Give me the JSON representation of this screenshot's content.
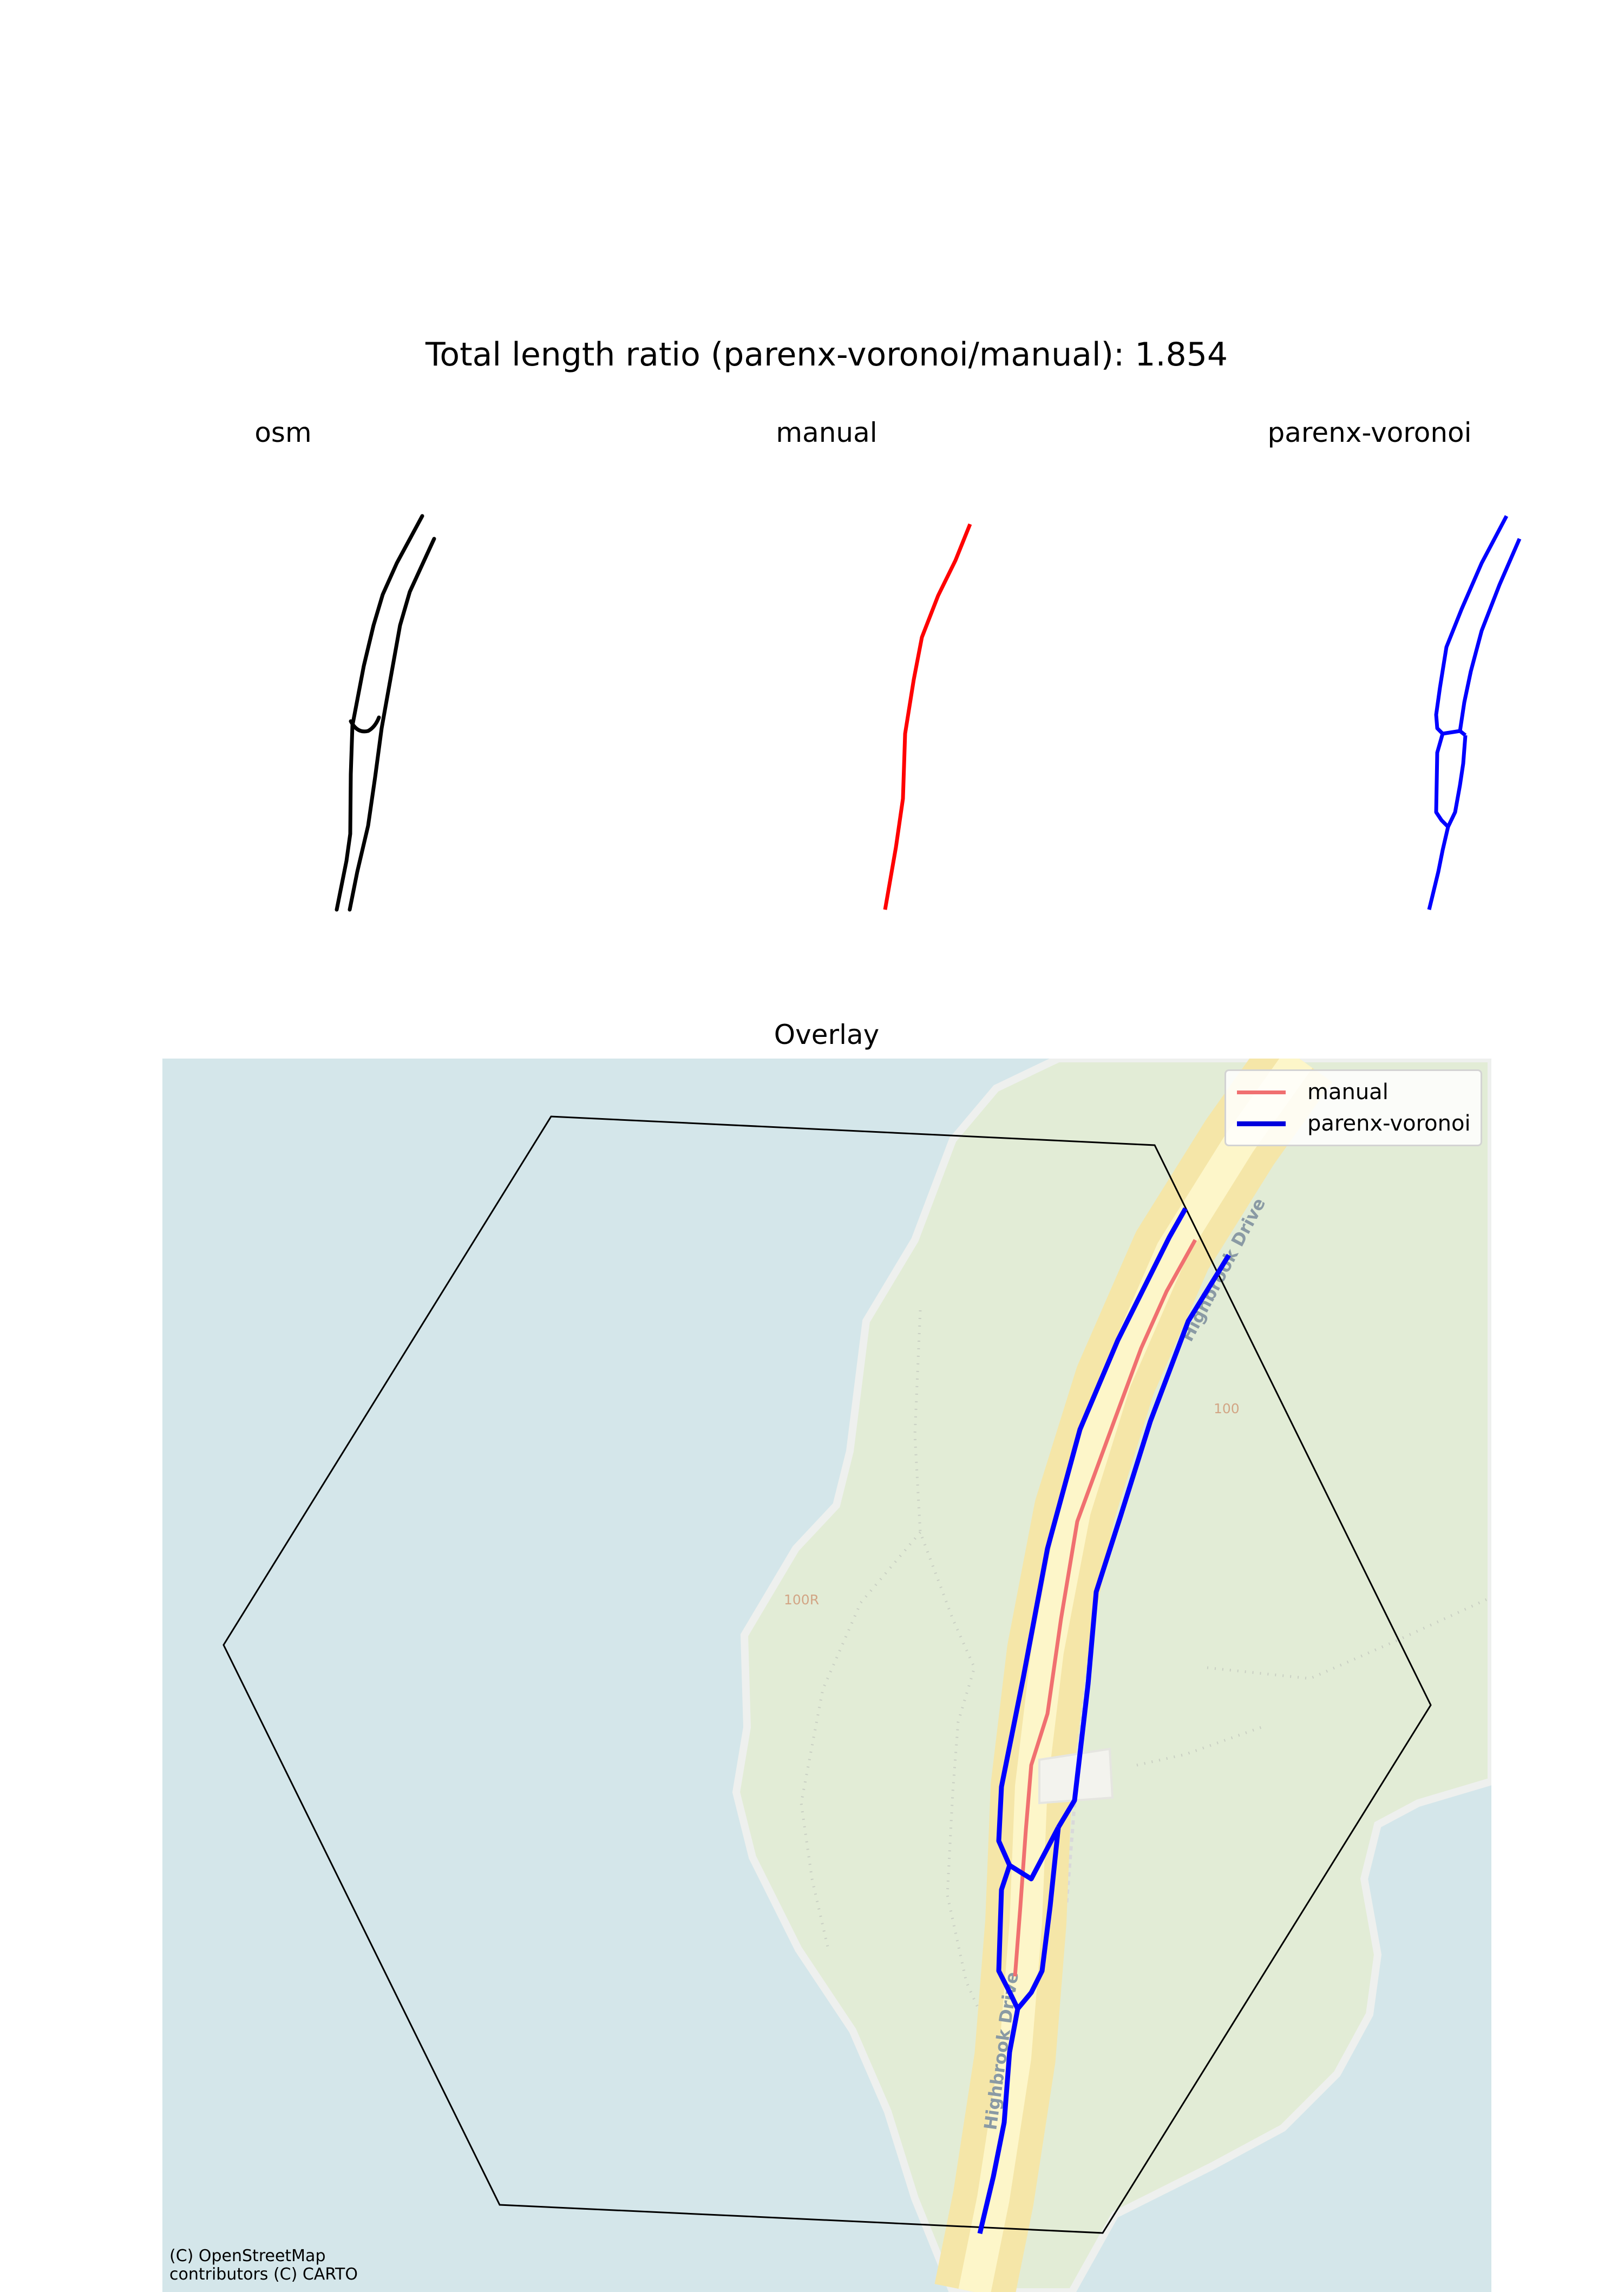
{
  "suptitle": "Total length ratio (parenx-voronoi/manual): 1.854",
  "panels": {
    "osm_title": "osm",
    "manual_title": "manual",
    "parenx_title": "parenx-voronoi",
    "overlay_title": "Overlay"
  },
  "legend": {
    "items": [
      {
        "label": "manual",
        "color": "#f07070"
      },
      {
        "label": "parenx-voronoi",
        "color": "#0000dd"
      }
    ]
  },
  "map": {
    "road_labels": [
      "Highbrook Drive",
      "Highbrook Drive"
    ],
    "lot_labels": [
      "100",
      "100R"
    ],
    "attribution": "(C) OpenStreetMap contributors (C) CARTO"
  },
  "colors": {
    "osm_line": "#000000",
    "manual_line": "#ff0000",
    "parenx_line": "#0000ff",
    "water": "#d4e6ea",
    "land": "#e2ecd6",
    "road_casing": "#f5e6a8",
    "road_fill": "#fdf6c9"
  }
}
